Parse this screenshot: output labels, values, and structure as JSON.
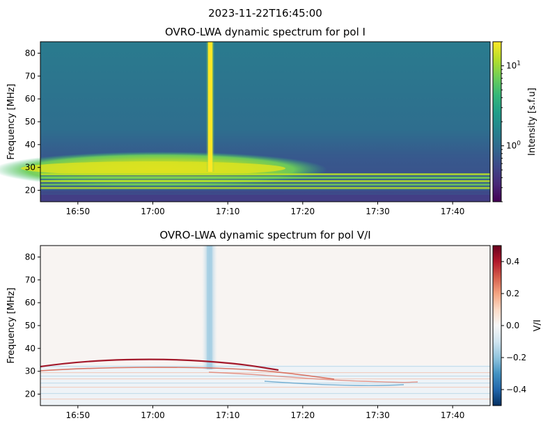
{
  "suptitle": "2023-11-22T16:45:00",
  "colors": {
    "viridis": [
      "#440154",
      "#482878",
      "#3e4989",
      "#31688e",
      "#26828e",
      "#1f9e89",
      "#35b779",
      "#6ece58",
      "#b5de2b",
      "#fde725"
    ],
    "rdbu_r": [
      "#053061",
      "#2166ac",
      "#4393c3",
      "#92c5de",
      "#d1e5f0",
      "#f7f7f7",
      "#fddbc7",
      "#f4a582",
      "#d6604d",
      "#b2182b",
      "#67001f"
    ]
  },
  "chart_data": [
    {
      "type": "heatmap",
      "title": "OVRO-LWA dynamic spectrum for pol I",
      "xlabel": "",
      "ylabel": "Frequency [MHz]",
      "x_range": [
        "16:45",
        "17:45"
      ],
      "x_ticks": [
        "16:50",
        "17:00",
        "17:10",
        "17:20",
        "17:30",
        "17:40"
      ],
      "ylim": [
        15,
        85
      ],
      "y_ticks": [
        20,
        30,
        40,
        50,
        60,
        70,
        80
      ],
      "colorbar": {
        "label": "Intensity [s.f.u]",
        "scale": "log",
        "range": [
          0.2,
          20
        ],
        "ticks": [
          {
            "value": 1,
            "label": "10",
            "exp": "0"
          },
          {
            "value": 10,
            "label": "10",
            "exp": "1"
          }
        ],
        "colormap": "viridis"
      },
      "features": [
        {
          "kind": "spike",
          "time": "17:08",
          "freq_range": [
            29,
            85
          ],
          "intensity": 20
        },
        {
          "kind": "emission_band",
          "time_range": [
            "16:45",
            "17:18"
          ],
          "freq_range": [
            26,
            34
          ],
          "intensity": 12
        },
        {
          "kind": "horizontal_lines",
          "freqs": [
            21,
            22.5,
            24,
            25.5,
            27
          ],
          "intensity": 8
        }
      ]
    },
    {
      "type": "heatmap",
      "title": "OVRO-LWA dynamic spectrum for pol V/I",
      "xlabel": "",
      "ylabel": "Frequency [MHz]",
      "x_range": [
        "16:45",
        "17:45"
      ],
      "x_ticks": [
        "16:50",
        "17:00",
        "17:10",
        "17:20",
        "17:30",
        "17:40"
      ],
      "ylim": [
        15,
        85
      ],
      "y_ticks": [
        20,
        30,
        40,
        50,
        60,
        70,
        80
      ],
      "colorbar": {
        "label": "V/I",
        "scale": "linear",
        "range": [
          -0.5,
          0.5
        ],
        "ticks": [
          {
            "value": 0.4,
            "label": "0.4"
          },
          {
            "value": 0.2,
            "label": "0.2"
          },
          {
            "value": 0.0,
            "label": "0.0"
          },
          {
            "value": -0.2,
            "label": "−0.2"
          },
          {
            "value": -0.4,
            "label": "−0.4"
          }
        ],
        "colormap": "RdBu_r"
      },
      "features": [
        {
          "kind": "spike",
          "time": "17:08",
          "freq_range": [
            28,
            85
          ],
          "value": -0.2
        },
        {
          "kind": "arc",
          "time_range": [
            "16:45",
            "17:20"
          ],
          "freq_start": 31,
          "freq_peak": 34,
          "value": 0.45
        },
        {
          "kind": "arc",
          "time_range": [
            "17:05",
            "17:35"
          ],
          "freq_start": 31,
          "freq_end": 25,
          "value": 0.3
        }
      ]
    }
  ]
}
